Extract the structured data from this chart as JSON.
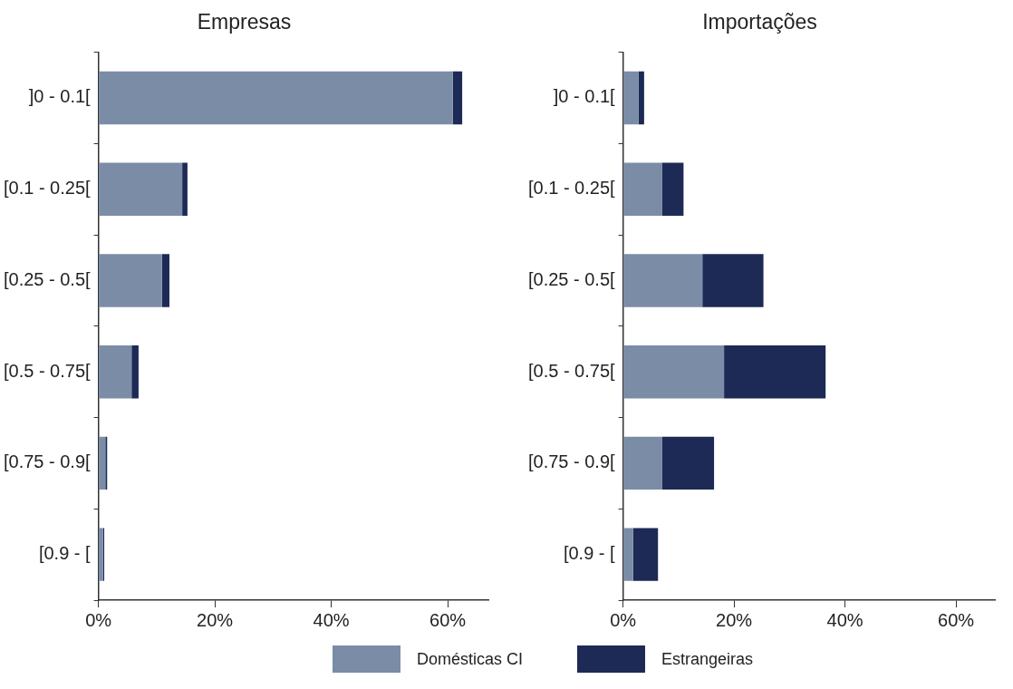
{
  "chart_data": [
    {
      "type": "bar",
      "title": "Empresas",
      "orientation": "horizontal",
      "stacked": true,
      "categories": [
        "]0 - 0.1[",
        "[0.1 - 0.25[",
        "[0.25 - 0.5[",
        "[0.5 - 0.75[",
        "[0.75 - 0.9[",
        "[0.9 - ["
      ],
      "series": [
        {
          "name": "Domésticas CI",
          "color": "#7a8ca6",
          "values": [
            60.9,
            14.4,
            10.9,
            5.7,
            1.2,
            0.8
          ]
        },
        {
          "name": "Estrangeiras",
          "color": "#1c2a55",
          "values": [
            1.6,
            0.9,
            1.3,
            1.2,
            0.3,
            0.2
          ]
        }
      ],
      "xlim": [
        0,
        67
      ],
      "xticks": [
        {
          "value": 0,
          "label": "0%"
        },
        {
          "value": 20,
          "label": "20%"
        },
        {
          "value": 40,
          "label": "40%"
        },
        {
          "value": 60,
          "label": "60%"
        }
      ],
      "grid": false,
      "legend": "bottom"
    },
    {
      "type": "bar",
      "title": "Importações",
      "orientation": "horizontal",
      "stacked": true,
      "categories": [
        "]0 - 0.1[",
        "[0.1 - 0.25[",
        "[0.25 - 0.5[",
        "[0.5 - 0.75[",
        "[0.75 - 0.9[",
        "[0.9 - ["
      ],
      "series": [
        {
          "color": "#7a8ca6",
          "values": [
            2.8,
            7.0,
            14.3,
            18.2,
            7.0,
            1.8
          ]
        },
        {
          "color": "#1c2a55",
          "values": [
            1.0,
            3.9,
            11.0,
            18.3,
            9.4,
            4.5
          ]
        }
      ],
      "xlim": [
        0,
        67
      ],
      "xticks": [
        {
          "value": 0,
          "label": "0%"
        },
        {
          "value": 20,
          "label": "20%"
        },
        {
          "value": 40,
          "label": "40%"
        },
        {
          "value": 60,
          "label": "60%"
        }
      ],
      "grid": false
    }
  ]
}
